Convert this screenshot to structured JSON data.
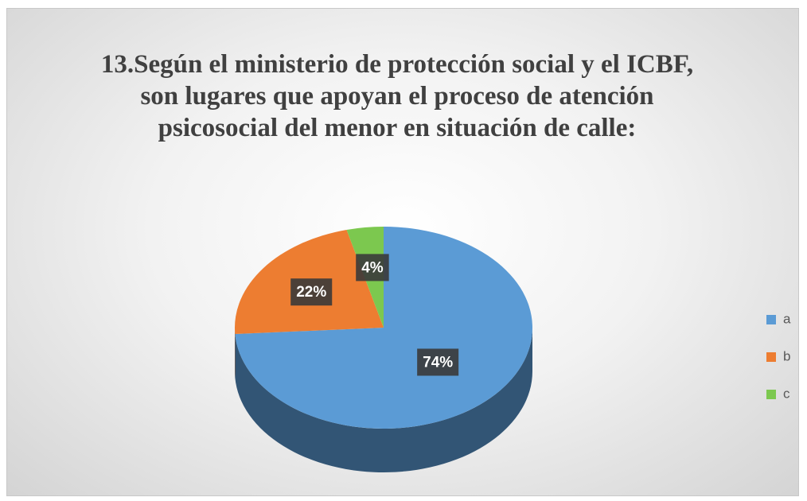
{
  "chart_data": {
    "type": "pie3d",
    "title": "13.Según el ministerio de protección social y el ICBF, son lugares que apoyan el proceso de atención psicosocial del menor en situación de calle:",
    "categories": [
      "a",
      "b",
      "c"
    ],
    "values": [
      74,
      22,
      4
    ],
    "value_labels": [
      "74%",
      "22%",
      "4%"
    ],
    "colors": [
      "#5b9bd5",
      "#ed7d31",
      "#7cc84f"
    ],
    "legend": "right"
  }
}
